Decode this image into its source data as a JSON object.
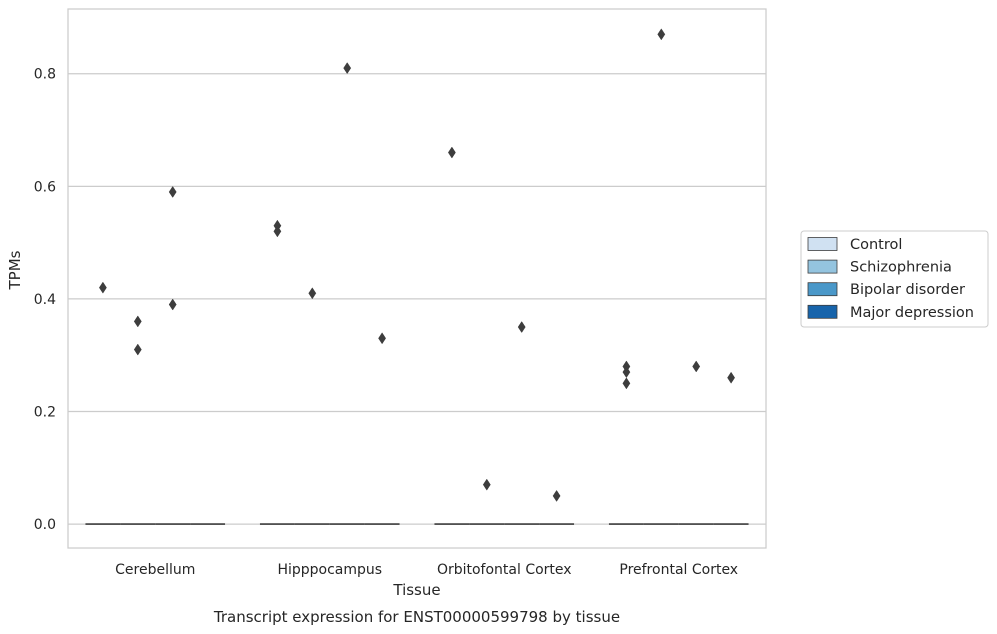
{
  "chart_data": {
    "type": "boxplot",
    "xlabel": "Tissue",
    "ylabel": "TPMs",
    "caption": "Transcript expression for ENST00000599798 by tissue",
    "ylim": [
      -0.0425,
      0.915
    ],
    "yticks": [
      0.0,
      0.2,
      0.4,
      0.6,
      0.8
    ],
    "ytick_labels": [
      "0.0",
      "0.2",
      "0.4",
      "0.6",
      "0.8"
    ],
    "grid": "horizontal",
    "legend_placement": "right-outside",
    "categories": [
      "Cerebellum",
      "Hipppocampus",
      "Orbitofontal Cortex",
      "Prefrontal Cortex"
    ],
    "series": [
      {
        "name": "Control",
        "color": "#d0e1f2",
        "median": [
          0,
          0,
          0,
          0
        ],
        "outliers": [
          [
            0.42
          ],
          [
            0.53,
            0.52
          ],
          [
            0.66
          ],
          [
            0.28,
            0.27,
            0.25
          ]
        ]
      },
      {
        "name": "Schizophrenia",
        "color": "#94c4df",
        "median": [
          0,
          0,
          0,
          0
        ],
        "outliers": [
          [
            0.36,
            0.31
          ],
          [
            0.41
          ],
          [
            0.07
          ],
          [
            0.87
          ]
        ]
      },
      {
        "name": "Bipolar disorder",
        "color": "#4a98c9",
        "median": [
          0,
          0,
          0,
          0
        ],
        "outliers": [
          [
            0.59,
            0.39
          ],
          [
            0.81
          ],
          [
            0.35
          ],
          [
            0.28
          ]
        ]
      },
      {
        "name": "Major depression",
        "color": "#1764ab",
        "median": [
          0,
          0,
          0,
          0
        ],
        "outliers": [
          [],
          [
            0.33
          ],
          [
            0.05
          ],
          [
            0.26
          ]
        ]
      }
    ]
  }
}
